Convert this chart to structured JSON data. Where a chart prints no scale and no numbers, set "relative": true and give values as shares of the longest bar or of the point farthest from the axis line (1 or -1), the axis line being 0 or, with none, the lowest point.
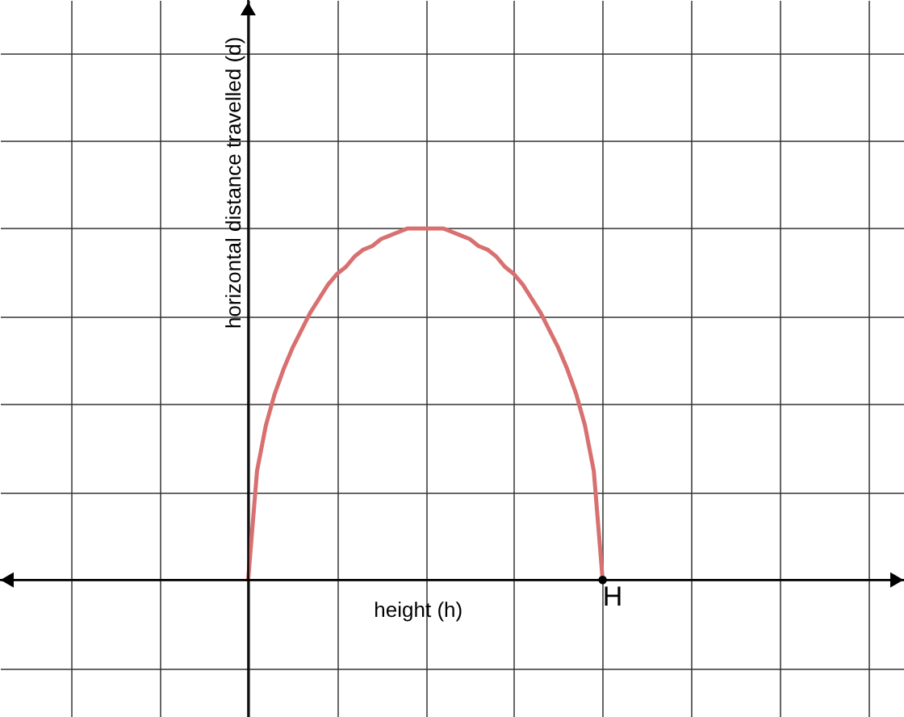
{
  "chart_data": {
    "type": "line",
    "relative": true,
    "xlabel": "height (h)",
    "ylabel": "horizontal distance travelled (d)",
    "categories": [
      null,
      null,
      null,
      null,
      null,
      null,
      null,
      null,
      null,
      null,
      null,
      null,
      null,
      null,
      null,
      null,
      null,
      null,
      null,
      null,
      null,
      null,
      null,
      null,
      null,
      null,
      null,
      null,
      null,
      null,
      null,
      null,
      null,
      null,
      null,
      null,
      null,
      null,
      null,
      null,
      null,
      null,
      null,
      null,
      null,
      null,
      null,
      null,
      null,
      null,
      null,
      null,
      null,
      null,
      null,
      null,
      null,
      null,
      null,
      null,
      null,
      null,
      null,
      null,
      null,
      null,
      null,
      null,
      null,
      null,
      null,
      null,
      null,
      null,
      null,
      null,
      null,
      null,
      null,
      null,
      null,
      null,
      null,
      null,
      null,
      null,
      null,
      null,
      null,
      null,
      null,
      null,
      null,
      null,
      null,
      null,
      null,
      null,
      null,
      null,
      null,
      null,
      null
    ],
    "series": [
      {
        "color": "#d87070",
        "values": [
          null,
          null,
          null,
          null,
          null,
          null,
          null,
          null,
          null,
          null,
          null,
          null,
          null,
          null,
          null,
          null,
          null,
          null,
          null,
          null,
          null,
          null,
          null,
          null,
          null,
          null,
          null,
          null,
          0,
          0.31,
          0.44,
          0.53,
          0.6,
          0.66,
          0.71,
          0.76,
          0.8,
          0.84,
          0.87,
          0.89,
          0.92,
          0.94,
          0.95,
          0.97,
          0.98,
          0.99,
          1,
          1,
          1,
          1,
          1,
          0.99,
          0.98,
          0.97,
          0.95,
          0.94,
          0.92,
          0.89,
          0.87,
          0.84,
          0.8,
          0.76,
          0.71,
          0.66,
          0.6,
          0.53,
          0.44,
          0.31,
          0,
          null,
          null,
          null,
          null,
          null,
          null,
          null,
          null,
          null,
          null,
          null,
          null,
          null,
          null,
          null,
          null,
          null,
          null,
          null,
          null,
          null,
          null,
          null,
          null,
          null,
          null,
          null,
          null,
          null,
          null,
          null,
          null,
          null,
          null
        ]
      }
    ],
    "annotations": [
      "H"
    ],
    "grid": true,
    "marker": "none",
    "line_style": "solid"
  }
}
